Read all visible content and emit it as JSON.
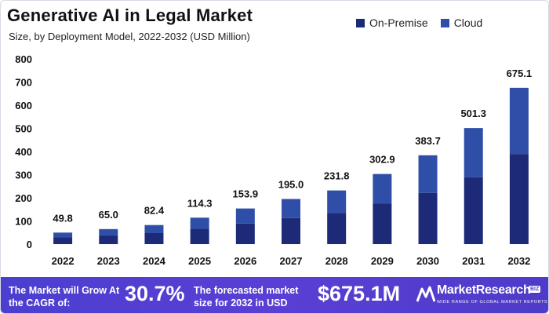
{
  "header": {
    "title": "Generative AI in Legal Market",
    "subtitle": "Size, by Deployment Model, 2022-2032 (USD Million)"
  },
  "legend": {
    "items": [
      {
        "label": "On-Premise",
        "color": "#1c2a78"
      },
      {
        "label": "Cloud",
        "color": "#2f4ea8"
      }
    ]
  },
  "chart_data": {
    "type": "bar",
    "stacked": true,
    "title": "Generative AI in Legal Market",
    "subtitle": "Size, by Deployment Model, 2022-2032 (USD Million)",
    "categories": [
      "2022",
      "2023",
      "2024",
      "2025",
      "2026",
      "2027",
      "2028",
      "2029",
      "2030",
      "2031",
      "2032"
    ],
    "series": [
      {
        "name": "On-Premise",
        "color": "#1c2a78",
        "values": [
          28.7,
          37.5,
          47.5,
          65.9,
          88.8,
          112.5,
          133.7,
          174.7,
          221.3,
          289.2,
          389.4
        ]
      },
      {
        "name": "Cloud",
        "color": "#2f4ea8",
        "values": [
          21.1,
          27.5,
          34.9,
          48.4,
          65.1,
          82.5,
          98.1,
          128.2,
          162.4,
          212.1,
          285.7
        ]
      }
    ],
    "totals": [
      49.8,
      65.0,
      82.4,
      114.3,
      153.9,
      195.0,
      231.8,
      302.9,
      383.7,
      501.3,
      675.1
    ],
    "total_labels": [
      "49.8",
      "65.0",
      "82.4",
      "114.3",
      "153.9",
      "195.0",
      "231.8",
      "302.9",
      "383.7",
      "501.3",
      "675.1"
    ],
    "yticks": [
      0,
      100,
      200,
      300,
      400,
      500,
      600,
      700,
      800
    ],
    "ylim": [
      0,
      800
    ],
    "xlabel": "",
    "ylabel": "",
    "grid": false,
    "legend_position": "top-right"
  },
  "banner": {
    "text1": "The Market will Grow At the CAGR of:",
    "cagr": "30.7%",
    "text2": "The forecasted market size for 2032 in USD",
    "value": "$675.1M",
    "logo_name": "MarketResearch",
    "logo_badge": "BIZ",
    "logo_tagline": "WIDE RANGE OF GLOBAL MARKET REPORTS"
  }
}
